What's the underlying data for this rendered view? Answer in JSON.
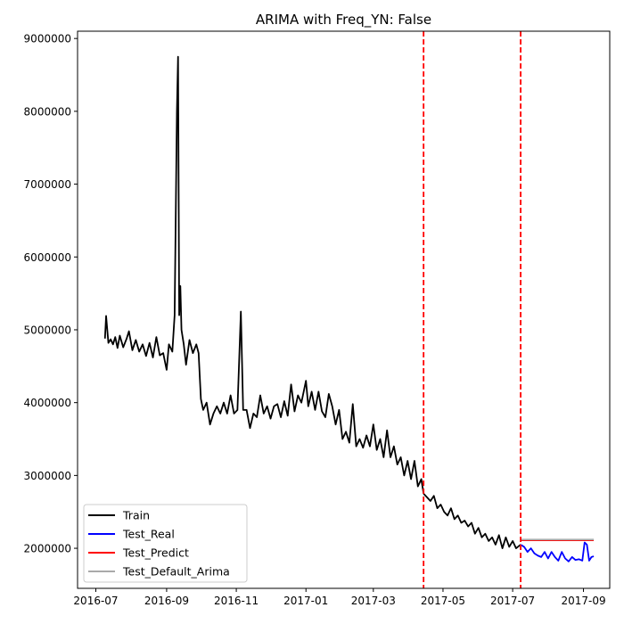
{
  "chart_data": {
    "type": "line",
    "title": "ARIMA with Freq_YN: False",
    "xlabel": "",
    "ylabel": "",
    "x_range": [
      "2016-06-15",
      "2017-09-24"
    ],
    "ylim": [
      1450000,
      9100000
    ],
    "x_ticks": [
      {
        "date": "2016-07-01",
        "label": "2016-07"
      },
      {
        "date": "2016-09-01",
        "label": "2016-09"
      },
      {
        "date": "2016-11-01",
        "label": "2016-11"
      },
      {
        "date": "2017-01-01",
        "label": "2017-01"
      },
      {
        "date": "2017-03-01",
        "label": "2017-03"
      },
      {
        "date": "2017-05-01",
        "label": "2017-05"
      },
      {
        "date": "2017-07-01",
        "label": "2017-07"
      },
      {
        "date": "2017-09-01",
        "label": "2017-09"
      }
    ],
    "y_ticks": [
      2000000,
      3000000,
      4000000,
      5000000,
      6000000,
      7000000,
      8000000,
      9000000
    ],
    "y_tick_labels": [
      "2000000",
      "3000000",
      "4000000",
      "5000000",
      "6000000",
      "7000000",
      "8000000",
      "9000000"
    ],
    "grid": false,
    "legend_position": "lower-left",
    "vlines": [
      {
        "date": "2017-04-14",
        "color": "#ff0000",
        "style": "dashed"
      },
      {
        "date": "2017-07-08",
        "color": "#ff0000",
        "style": "dashed"
      }
    ],
    "series": [
      {
        "name": "Train",
        "color": "#000000",
        "points": [
          [
            "2016-07-09",
            4880000
          ],
          [
            "2016-07-10",
            5190000
          ],
          [
            "2016-07-12",
            4820000
          ],
          [
            "2016-07-14",
            4870000
          ],
          [
            "2016-07-16",
            4800000
          ],
          [
            "2016-07-18",
            4900000
          ],
          [
            "2016-07-20",
            4750000
          ],
          [
            "2016-07-22",
            4920000
          ],
          [
            "2016-07-25",
            4760000
          ],
          [
            "2016-07-28",
            4880000
          ],
          [
            "2016-07-30",
            4980000
          ],
          [
            "2016-08-02",
            4720000
          ],
          [
            "2016-08-05",
            4860000
          ],
          [
            "2016-08-08",
            4700000
          ],
          [
            "2016-08-11",
            4800000
          ],
          [
            "2016-08-14",
            4640000
          ],
          [
            "2016-08-17",
            4820000
          ],
          [
            "2016-08-20",
            4620000
          ],
          [
            "2016-08-23",
            4900000
          ],
          [
            "2016-08-26",
            4650000
          ],
          [
            "2016-08-29",
            4680000
          ],
          [
            "2016-09-01",
            4450000
          ],
          [
            "2016-09-03",
            4800000
          ],
          [
            "2016-09-06",
            4700000
          ],
          [
            "2016-09-08",
            5200000
          ],
          [
            "2016-09-10",
            8000000
          ],
          [
            "2016-09-11",
            8750000
          ],
          [
            "2016-09-12",
            5200000
          ],
          [
            "2016-09-13",
            5600000
          ],
          [
            "2016-09-14",
            5000000
          ],
          [
            "2016-09-16",
            4800000
          ],
          [
            "2016-09-18",
            4520000
          ],
          [
            "2016-09-21",
            4860000
          ],
          [
            "2016-09-24",
            4680000
          ],
          [
            "2016-09-27",
            4800000
          ],
          [
            "2016-09-29",
            4680000
          ],
          [
            "2016-10-01",
            4050000
          ],
          [
            "2016-10-03",
            3900000
          ],
          [
            "2016-10-06",
            4000000
          ],
          [
            "2016-10-09",
            3700000
          ],
          [
            "2016-10-12",
            3850000
          ],
          [
            "2016-10-15",
            3950000
          ],
          [
            "2016-10-18",
            3850000
          ],
          [
            "2016-10-21",
            4000000
          ],
          [
            "2016-10-24",
            3850000
          ],
          [
            "2016-10-27",
            4100000
          ],
          [
            "2016-10-30",
            3850000
          ],
          [
            "2016-11-02",
            3900000
          ],
          [
            "2016-11-05",
            5250000
          ],
          [
            "2016-11-07",
            3900000
          ],
          [
            "2016-11-10",
            3900000
          ],
          [
            "2016-11-13",
            3650000
          ],
          [
            "2016-11-16",
            3850000
          ],
          [
            "2016-11-19",
            3800000
          ],
          [
            "2016-11-22",
            4100000
          ],
          [
            "2016-11-25",
            3850000
          ],
          [
            "2016-11-28",
            3950000
          ],
          [
            "2016-12-01",
            3780000
          ],
          [
            "2016-12-04",
            3950000
          ],
          [
            "2016-12-07",
            3980000
          ],
          [
            "2016-12-10",
            3800000
          ],
          [
            "2016-12-13",
            4020000
          ],
          [
            "2016-12-16",
            3820000
          ],
          [
            "2016-12-19",
            4250000
          ],
          [
            "2016-12-22",
            3880000
          ],
          [
            "2016-12-25",
            4100000
          ],
          [
            "2016-12-28",
            4000000
          ],
          [
            "2017-01-01",
            4300000
          ],
          [
            "2017-01-03",
            3950000
          ],
          [
            "2017-01-06",
            4150000
          ],
          [
            "2017-01-09",
            3900000
          ],
          [
            "2017-01-12",
            4150000
          ],
          [
            "2017-01-15",
            3880000
          ],
          [
            "2017-01-18",
            3800000
          ],
          [
            "2017-01-21",
            4120000
          ],
          [
            "2017-01-24",
            3950000
          ],
          [
            "2017-01-27",
            3700000
          ],
          [
            "2017-01-30",
            3900000
          ],
          [
            "2017-02-02",
            3500000
          ],
          [
            "2017-02-05",
            3600000
          ],
          [
            "2017-02-08",
            3450000
          ],
          [
            "2017-02-11",
            3980000
          ],
          [
            "2017-02-14",
            3400000
          ],
          [
            "2017-02-17",
            3500000
          ],
          [
            "2017-02-20",
            3380000
          ],
          [
            "2017-02-23",
            3550000
          ],
          [
            "2017-02-26",
            3400000
          ],
          [
            "2017-03-01",
            3700000
          ],
          [
            "2017-03-04",
            3350000
          ],
          [
            "2017-03-07",
            3500000
          ],
          [
            "2017-03-10",
            3250000
          ],
          [
            "2017-03-13",
            3620000
          ],
          [
            "2017-03-16",
            3250000
          ],
          [
            "2017-03-19",
            3400000
          ],
          [
            "2017-03-22",
            3150000
          ],
          [
            "2017-03-25",
            3250000
          ],
          [
            "2017-03-28",
            3000000
          ],
          [
            "2017-03-31",
            3200000
          ],
          [
            "2017-04-03",
            2950000
          ],
          [
            "2017-04-06",
            3200000
          ],
          [
            "2017-04-09",
            2850000
          ],
          [
            "2017-04-12",
            2950000
          ],
          [
            "2017-04-14",
            2750000
          ]
        ]
      },
      {
        "name": "Train",
        "color": "#000000",
        "points": [
          [
            "2017-04-14",
            2750000
          ],
          [
            "2017-04-17",
            2700000
          ],
          [
            "2017-04-20",
            2650000
          ],
          [
            "2017-04-23",
            2720000
          ],
          [
            "2017-04-26",
            2550000
          ],
          [
            "2017-04-29",
            2600000
          ],
          [
            "2017-05-02",
            2500000
          ],
          [
            "2017-05-05",
            2450000
          ],
          [
            "2017-05-08",
            2550000
          ],
          [
            "2017-05-11",
            2400000
          ],
          [
            "2017-05-14",
            2450000
          ],
          [
            "2017-05-17",
            2350000
          ],
          [
            "2017-05-20",
            2380000
          ],
          [
            "2017-05-23",
            2300000
          ],
          [
            "2017-05-26",
            2350000
          ],
          [
            "2017-05-29",
            2200000
          ],
          [
            "2017-06-01",
            2280000
          ],
          [
            "2017-06-04",
            2150000
          ],
          [
            "2017-06-07",
            2200000
          ],
          [
            "2017-06-10",
            2100000
          ],
          [
            "2017-06-13",
            2150000
          ],
          [
            "2017-06-16",
            2050000
          ],
          [
            "2017-06-19",
            2180000
          ],
          [
            "2017-06-22",
            2000000
          ],
          [
            "2017-06-25",
            2150000
          ],
          [
            "2017-06-28",
            2020000
          ],
          [
            "2017-07-01",
            2100000
          ],
          [
            "2017-07-04",
            2000000
          ],
          [
            "2017-07-08",
            2050000
          ]
        ]
      },
      {
        "name": "Test_Real",
        "color": "#0000ff",
        "points": [
          [
            "2017-07-08",
            2050000
          ],
          [
            "2017-07-11",
            2020000
          ],
          [
            "2017-07-14",
            1950000
          ],
          [
            "2017-07-17",
            2000000
          ],
          [
            "2017-07-20",
            1930000
          ],
          [
            "2017-07-23",
            1900000
          ],
          [
            "2017-07-26",
            1880000
          ],
          [
            "2017-07-29",
            1950000
          ],
          [
            "2017-08-01",
            1860000
          ],
          [
            "2017-08-04",
            1950000
          ],
          [
            "2017-08-07",
            1880000
          ],
          [
            "2017-08-10",
            1830000
          ],
          [
            "2017-08-13",
            1950000
          ],
          [
            "2017-08-16",
            1860000
          ],
          [
            "2017-08-19",
            1820000
          ],
          [
            "2017-08-22",
            1880000
          ],
          [
            "2017-08-25",
            1840000
          ],
          [
            "2017-08-28",
            1850000
          ],
          [
            "2017-08-31",
            1830000
          ],
          [
            "2017-09-02",
            2080000
          ],
          [
            "2017-09-04",
            2050000
          ],
          [
            "2017-09-06",
            1830000
          ],
          [
            "2017-09-08",
            1880000
          ],
          [
            "2017-09-10",
            1890000
          ]
        ]
      },
      {
        "name": "Test_Predict",
        "color": "#ff0000",
        "points": [
          [
            "2017-07-08",
            2110000
          ],
          [
            "2017-09-10",
            2110000
          ]
        ]
      },
      {
        "name": "Test_Default_Arima",
        "color": "#aaaaaa",
        "points": [
          [
            "2017-07-08",
            2120000
          ],
          [
            "2017-09-10",
            2120000
          ]
        ]
      }
    ],
    "legend": [
      {
        "label": "Train",
        "color": "#000000"
      },
      {
        "label": "Test_Real",
        "color": "#0000ff"
      },
      {
        "label": "Test_Predict",
        "color": "#ff0000"
      },
      {
        "label": "Test_Default_Arima",
        "color": "#aaaaaa"
      }
    ]
  }
}
